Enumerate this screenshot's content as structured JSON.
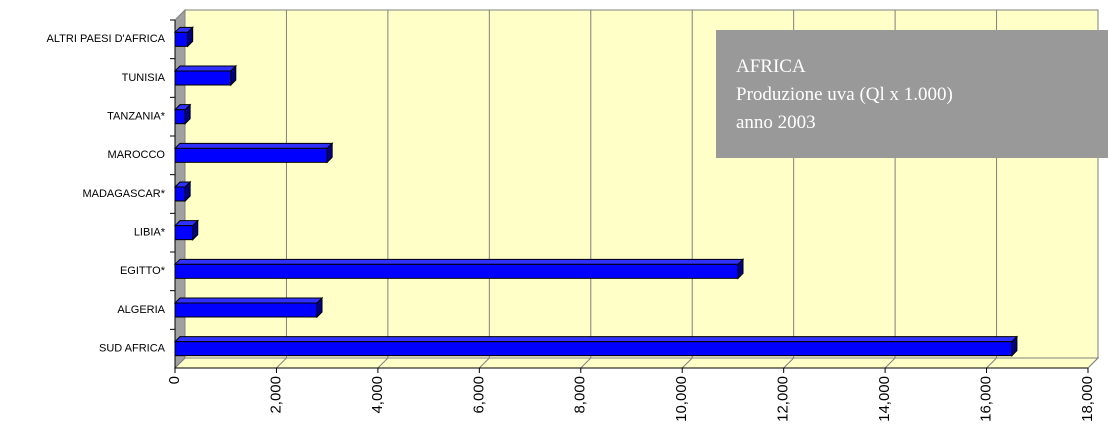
{
  "chart_data": {
    "type": "bar3d_horizontal",
    "title": "AFRICA",
    "subtitle": [
      "Produzione uva (Ql x 1.000)",
      "anno 2003"
    ],
    "categories": [
      "ALTRI PAESI D'AFRICA",
      "TUNISIA",
      "TANZANIA*",
      "MAROCCO",
      "MADAGASCAR*",
      "LIBIA*",
      "EGITTO*",
      "ALGERIA",
      "SUD AFRICA"
    ],
    "values": [
      250,
      1100,
      200,
      3000,
      200,
      350,
      11100,
      2800,
      16500
    ],
    "color": "#0000ff",
    "xlim": [
      0,
      18000
    ],
    "xticks": [
      0,
      {
        "value": 2000,
        "label": "2,000"
      },
      {
        "value": 4000,
        "label": "4,000"
      },
      {
        "value": 6000,
        "label": "6,000"
      },
      {
        "value": 8000,
        "label": "8,000"
      },
      {
        "value": 10000,
        "label": "10,000"
      },
      {
        "value": 12000,
        "label": "12,000"
      },
      {
        "value": 14000,
        "label": "14,000"
      },
      {
        "value": 16000,
        "label": "16,000"
      },
      {
        "value": 18000,
        "label": "18,000"
      }
    ],
    "grid": true
  }
}
